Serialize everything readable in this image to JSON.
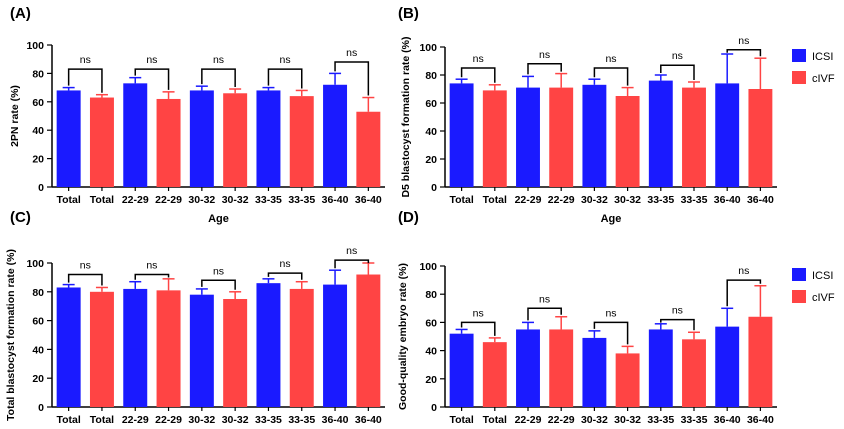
{
  "legend": {
    "items": [
      {
        "name": "ICSI",
        "color": "#1a1aff"
      },
      {
        "name": "cIVF",
        "color": "#ff4444"
      }
    ]
  },
  "chart_data": [
    {
      "panel_label": "(A)",
      "type": "bar",
      "ylabel": "2PN rate (%)",
      "xlabel": "Age",
      "ylim": [
        0,
        100
      ],
      "yticks": [
        0,
        20,
        40,
        60,
        80,
        100
      ],
      "legend": false,
      "categories": [
        "Total",
        "Total",
        "22-29",
        "22-29",
        "30-32",
        "30-32",
        "33-35",
        "33-35",
        "36-40",
        "36-40"
      ],
      "groups": [
        "ICSI",
        "cIVF",
        "ICSI",
        "cIVF",
        "ICSI",
        "cIVF",
        "ICSI",
        "cIVF",
        "ICSI",
        "cIVF"
      ],
      "values": [
        68,
        63,
        73,
        62,
        68,
        66,
        68,
        64,
        72,
        53
      ],
      "errors": [
        2,
        2,
        4,
        5,
        3,
        3,
        2,
        4,
        8,
        10
      ],
      "brackets": [
        {
          "pair": [
            0,
            1
          ],
          "y": 83,
          "label": "ns"
        },
        {
          "pair": [
            2,
            3
          ],
          "y": 83,
          "label": "ns"
        },
        {
          "pair": [
            4,
            5
          ],
          "y": 83,
          "label": "ns"
        },
        {
          "pair": [
            6,
            7
          ],
          "y": 83,
          "label": "ns"
        },
        {
          "pair": [
            8,
            9
          ],
          "y": 88,
          "label": "ns"
        }
      ]
    },
    {
      "panel_label": "(B)",
      "type": "bar",
      "ylabel": "D5 blastocyst formation rate (%)",
      "xlabel": "Age",
      "ylim": [
        0,
        100
      ],
      "yticks": [
        0,
        20,
        40,
        60,
        80,
        100
      ],
      "legend": true,
      "categories": [
        "Total",
        "Total",
        "22-29",
        "22-29",
        "30-32",
        "30-32",
        "33-35",
        "33-35",
        "36-40",
        "36-40"
      ],
      "groups": [
        "ICSI",
        "cIVF",
        "ICSI",
        "cIVF",
        "ICSI",
        "cIVF",
        "ICSI",
        "cIVF",
        "ICSI",
        "cIVF"
      ],
      "values": [
        74,
        69,
        71,
        71,
        73,
        65,
        76,
        71,
        74,
        70
      ],
      "errors": [
        3,
        4,
        8,
        10,
        4,
        6,
        4,
        4,
        21,
        22
      ],
      "brackets": [
        {
          "pair": [
            0,
            1
          ],
          "y": 85,
          "label": "ns"
        },
        {
          "pair": [
            2,
            3
          ],
          "y": 88,
          "label": "ns"
        },
        {
          "pair": [
            4,
            5
          ],
          "y": 85,
          "label": "ns"
        },
        {
          "pair": [
            6,
            7
          ],
          "y": 87,
          "label": "ns"
        },
        {
          "pair": [
            8,
            9
          ],
          "y": 98,
          "label": "ns"
        }
      ]
    },
    {
      "panel_label": "(C)",
      "type": "bar",
      "ylabel": "Total blastocyst formation rate (%)",
      "xlabel": "",
      "ylim": [
        0,
        100
      ],
      "yticks": [
        0,
        20,
        40,
        60,
        80,
        100
      ],
      "legend": false,
      "categories": [
        "Total",
        "Total",
        "22-29",
        "22-29",
        "30-32",
        "30-32",
        "33-35",
        "33-35",
        "36-40",
        "36-40"
      ],
      "groups": [
        "ICSI",
        "cIVF",
        "ICSI",
        "cIVF",
        "ICSI",
        "cIVF",
        "ICSI",
        "cIVF",
        "ICSI",
        "cIVF"
      ],
      "values": [
        83,
        80,
        82,
        81,
        78,
        75,
        86,
        82,
        85,
        92
      ],
      "errors": [
        2,
        3,
        5,
        8,
        4,
        5,
        3,
        5,
        10,
        8
      ],
      "brackets": [
        {
          "pair": [
            0,
            1
          ],
          "y": 92,
          "label": "ns"
        },
        {
          "pair": [
            2,
            3
          ],
          "y": 92,
          "label": "ns"
        },
        {
          "pair": [
            4,
            5
          ],
          "y": 88,
          "label": "ns"
        },
        {
          "pair": [
            6,
            7
          ],
          "y": 93,
          "label": "ns"
        },
        {
          "pair": [
            8,
            9
          ],
          "y": 102,
          "label": "ns"
        }
      ]
    },
    {
      "panel_label": "(D)",
      "type": "bar",
      "ylabel": "Good-quality embryo rate (%)",
      "xlabel": "",
      "ylim": [
        0,
        100
      ],
      "yticks": [
        0,
        20,
        40,
        60,
        80,
        100
      ],
      "legend": true,
      "categories": [
        "Total",
        "Total",
        "22-29",
        "22-29",
        "30-32",
        "30-32",
        "33-35",
        "33-35",
        "36-40",
        "36-40"
      ],
      "groups": [
        "ICSI",
        "cIVF",
        "ICSI",
        "cIVF",
        "ICSI",
        "cIVF",
        "ICSI",
        "cIVF",
        "ICSI",
        "cIVF"
      ],
      "values": [
        52,
        46,
        55,
        55,
        49,
        38,
        55,
        48,
        57,
        64
      ],
      "errors": [
        3,
        3,
        5,
        9,
        5,
        5,
        4,
        5,
        13,
        22
      ],
      "brackets": [
        {
          "pair": [
            0,
            1
          ],
          "y": 60,
          "label": "ns"
        },
        {
          "pair": [
            2,
            3
          ],
          "y": 70,
          "label": "ns"
        },
        {
          "pair": [
            4,
            5
          ],
          "y": 60,
          "label": "ns"
        },
        {
          "pair": [
            6,
            7
          ],
          "y": 62,
          "label": "ns"
        },
        {
          "pair": [
            8,
            9
          ],
          "y": 90,
          "label": "ns"
        }
      ]
    }
  ]
}
